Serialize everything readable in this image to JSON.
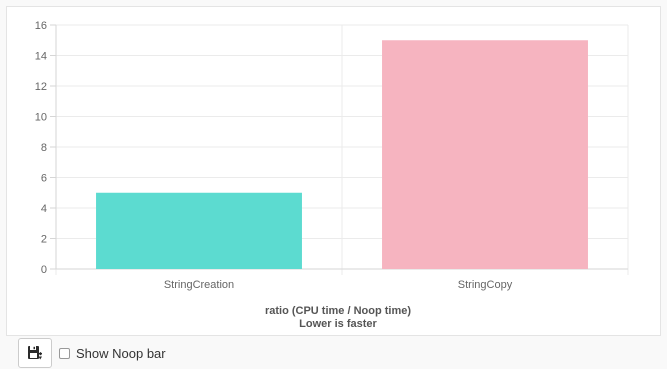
{
  "chart_data": {
    "type": "bar",
    "categories": [
      "StringCreation",
      "StringCopy"
    ],
    "values": [
      5,
      15
    ],
    "colors": [
      "#5cdbd0",
      "#f6b4c0"
    ],
    "title": "",
    "xlabel": "ratio (CPU time / Noop time)",
    "xlabel_sub": "Lower is faster",
    "ylabel": "",
    "ylim": [
      0,
      16
    ],
    "yticks": [
      0,
      2,
      4,
      6,
      8,
      10,
      12,
      14,
      16
    ],
    "grid": true,
    "legend": "none"
  },
  "controls": {
    "save_icon": "save-image-icon",
    "noop_checkbox_label": "Show Noop bar",
    "noop_checked": false
  }
}
